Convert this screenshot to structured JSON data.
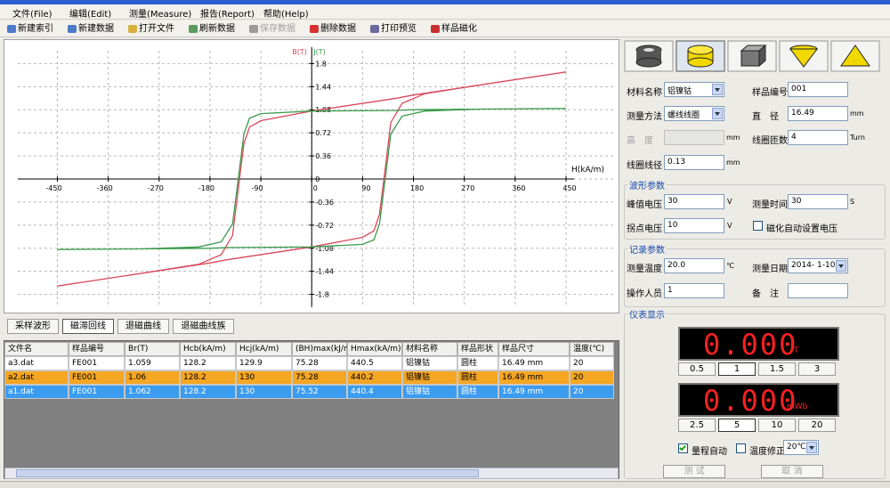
{
  "menu": [
    "文件(File)",
    "编辑(Edit)",
    "测量(Measure)",
    "报告(Report)",
    "帮助(Help)"
  ],
  "toolbar": [
    "新建索引",
    "新建数据",
    "打开文件",
    "刷新数据",
    "保存数据",
    "删除数据",
    "打印预览",
    "样品磁化"
  ],
  "plot": {
    "x_label": "H(kA/m)",
    "xlim": [
      -520,
      535
    ],
    "ylim": [
      -2,
      2
    ],
    "xticks": [
      -450,
      -360,
      -270,
      -180,
      -90,
      0,
      90,
      180,
      270,
      360,
      450
    ],
    "yticks": [
      1.8,
      1.44,
      1.08,
      0.72,
      0.36,
      0,
      -0.36,
      -0.72,
      -1.08,
      -1.44,
      -1.8
    ],
    "series": [
      {
        "name": "B(T)",
        "color": "#d9475a",
        "x": [
          450,
          300,
          180,
          150,
          0,
          -90,
          -110,
          -120,
          -130,
          -140,
          -160,
          -200,
          -300,
          -450,
          -300,
          -180,
          -150,
          0,
          90,
          110,
          120,
          130,
          140,
          160,
          200,
          300,
          450
        ],
        "y": [
          1.67,
          1.47,
          1.31,
          1.26,
          1.06,
          0.91,
          0.81,
          0.55,
          -0.16,
          -0.88,
          -1.18,
          -1.33,
          -1.47,
          -1.67,
          -1.47,
          -1.31,
          -1.26,
          -1.06,
          -0.91,
          -0.81,
          -0.55,
          0.16,
          0.88,
          1.18,
          1.33,
          1.47,
          1.67
        ]
      },
      {
        "name": "J(T)",
        "color": "#3a9a4a",
        "x": [
          450,
          300,
          180,
          150,
          0,
          -90,
          -110,
          -120,
          -130,
          -140,
          -160,
          -200,
          -300,
          -450,
          -300,
          -180,
          -150,
          0,
          90,
          110,
          120,
          130,
          140,
          160,
          200,
          300,
          450
        ],
        "y": [
          1.1,
          1.09,
          1.08,
          1.07,
          1.06,
          1.02,
          0.95,
          0.7,
          0,
          -0.7,
          -0.98,
          -1.06,
          -1.09,
          -1.1,
          -1.09,
          -1.08,
          -1.07,
          -1.06,
          -1.02,
          -0.95,
          -0.7,
          0,
          0.7,
          0.98,
          1.06,
          1.09,
          1.1
        ]
      }
    ]
  },
  "tabs": [
    "采样波形",
    "磁滞回线",
    "退磁曲线",
    "退磁曲线族"
  ],
  "table": {
    "columns": [
      "文件名",
      "样品编号",
      "Br(T)",
      "Hcb(kA/m)",
      "Hcj(kA/m)",
      "(BH)max(kJ/m³)",
      "Hmax(kA/m)",
      "材料名称",
      "样品形状",
      "样品尺寸",
      "温度(℃)"
    ],
    "rows": [
      [
        "a3.dat",
        "FE001",
        "1.059",
        "128.2",
        "129.9",
        "75.28",
        "440.5",
        "铝镍钴",
        "圆柱",
        "16.49 mm",
        "20"
      ],
      [
        "a2.dat",
        "FE001",
        "1.06",
        "128.2",
        "130",
        "75.28",
        "440.2",
        "铝镍钴",
        "圆柱",
        "16.49 mm",
        "20"
      ],
      [
        "a1.dat",
        "FE001",
        "1.062",
        "128.2",
        "130",
        "75.52",
        "440.4",
        "铝镍钴",
        "圆柱",
        "16.49 mm",
        "20"
      ]
    ]
  },
  "sample": {
    "material_label": "材料名称",
    "material": "铝镍钴",
    "sample_no_label": "样品编号",
    "sample_no": "001",
    "method_label": "测量方法",
    "method": "螺线线圈",
    "diameter_label": "直　径",
    "diameter": "16.49",
    "diameter_unit": "mm",
    "height_label": "高　度",
    "height_unit": "mm",
    "turns_label": "线圈匝数",
    "turns": "4",
    "turns_unit": "Turn",
    "wire_label": "线圈线径",
    "wire": "0.13",
    "wire_unit": "mm"
  },
  "waveform": {
    "title": "波形参数",
    "peak_label": "峰值电压",
    "peak": "30",
    "peak_unit": "V",
    "time_label": "测量时间",
    "time": "30",
    "time_unit": "S",
    "knee_label": "拐点电压",
    "knee": "10",
    "knee_unit": "V",
    "auto_voltage": "磁化自动设置电压"
  },
  "record": {
    "title": "记录参数",
    "temp_label": "测量温度",
    "temp": "20.0",
    "temp_unit": "℃",
    "date_label": "测量日期",
    "date": "2014- 1-10",
    "operator_label": "操作人员",
    "operator": "1",
    "note_label": "备　注"
  },
  "meter": {
    "title": "仪表显示",
    "display1": "0.000",
    "unit1": "T",
    "ranges1": [
      "0.5",
      "1",
      "1.5",
      "3"
    ],
    "display2": "0.000",
    "unit2": "mWb",
    "ranges2": [
      "2.5",
      "5",
      "10",
      "20"
    ],
    "auto_range": "量程自动",
    "temp_corr": "温度修正",
    "temp_corr_value": "20℃",
    "test": "测 试",
    "cancel": "取 消"
  }
}
